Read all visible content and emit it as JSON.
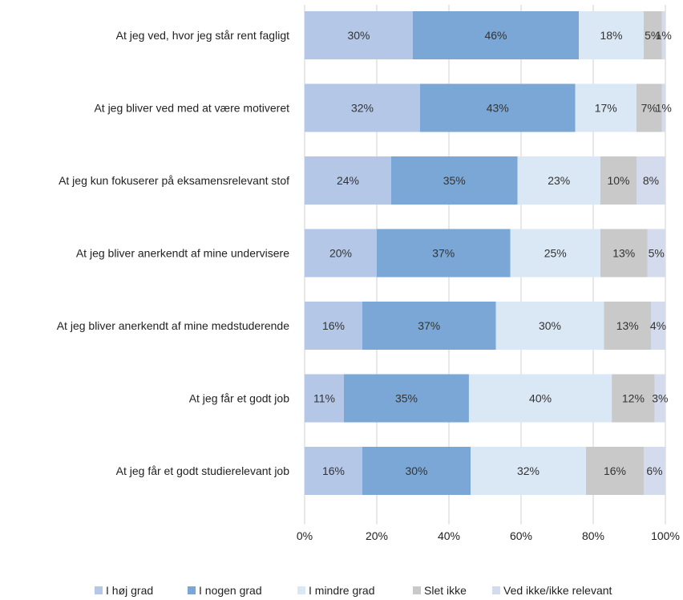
{
  "chart_data": {
    "type": "bar",
    "orientation": "horizontal",
    "stacked": "percent",
    "categories": [
      "At jeg ved, hvor jeg står rent fagligt",
      "At jeg bliver ved med at være motiveret",
      "At jeg kun fokuserer på eksamensrelevant stof",
      "At jeg bliver anerkendt af mine undervisere",
      "At jeg bliver anerkendt af mine medstuderende",
      "At jeg får et godt job",
      "At jeg får et godt studierelevant job"
    ],
    "series": [
      {
        "name": "I høj grad",
        "color": "#b4c7e7",
        "values": [
          30,
          32,
          24,
          20,
          16,
          11,
          16
        ]
      },
      {
        "name": "I nogen grad",
        "color": "#7ba7d6",
        "values": [
          46,
          43,
          35,
          37,
          37,
          35,
          30
        ]
      },
      {
        "name": "I mindre grad",
        "color": "#dae7f5",
        "values": [
          18,
          17,
          23,
          25,
          30,
          40,
          32
        ]
      },
      {
        "name": "Slet ikke",
        "color": "#c9c9c9",
        "values": [
          5,
          7,
          10,
          13,
          13,
          12,
          16
        ]
      },
      {
        "name": "Ved ikke/ikke relevant",
        "color": "#d4dbec",
        "values": [
          1,
          1,
          8,
          5,
          4,
          3,
          6
        ]
      }
    ],
    "data_labels": [
      [
        "30%",
        "46%",
        "18%",
        "5%",
        "1%"
      ],
      [
        "32%",
        "43%",
        "17%",
        "7%",
        "1%"
      ],
      [
        "24%",
        "35%",
        "23%",
        "10%",
        "8%"
      ],
      [
        "20%",
        "37%",
        "25%",
        "13%",
        "5%"
      ],
      [
        "16%",
        "37%",
        "30%",
        "13%",
        "4%"
      ],
      [
        "11%",
        "35%",
        "40%",
        "12%",
        "3%"
      ],
      [
        "16%",
        "30%",
        "32%",
        "16%",
        "6%"
      ]
    ],
    "x_ticks": [
      "0%",
      "20%",
      "40%",
      "60%",
      "80%",
      "100%"
    ],
    "xlim": [
      0,
      100
    ],
    "grid": true,
    "legend_position": "bottom"
  }
}
